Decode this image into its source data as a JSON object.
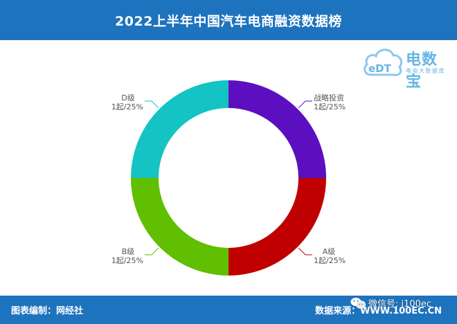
{
  "header": {
    "title": "2022上半年中国汽车电商融资数据榜"
  },
  "logo": {
    "mark_text": "eDT",
    "name": "电数宝",
    "tagline": "电商大数据库"
  },
  "chart_data": {
    "type": "pie",
    "donut": true,
    "slices": [
      {
        "label": "战略投资",
        "value_label": "1起/25%",
        "count": 1,
        "percent": 25,
        "color": "#5b0fbf"
      },
      {
        "label": "A级",
        "value_label": "1起/25%",
        "count": 1,
        "percent": 25,
        "color": "#c00000"
      },
      {
        "label": "B级",
        "value_label": "1起/25%",
        "count": 1,
        "percent": 25,
        "color": "#5fbf00"
      },
      {
        "label": "D级",
        "value_label": "1起/25%",
        "count": 1,
        "percent": 25,
        "color": "#14c3c3"
      }
    ]
  },
  "footer": {
    "left": "图表编制：网经社",
    "right": "数据来源：WWW.100EC.CN"
  },
  "watermark": {
    "icon": "wechat-icon",
    "text": "微信号: i100ec"
  }
}
